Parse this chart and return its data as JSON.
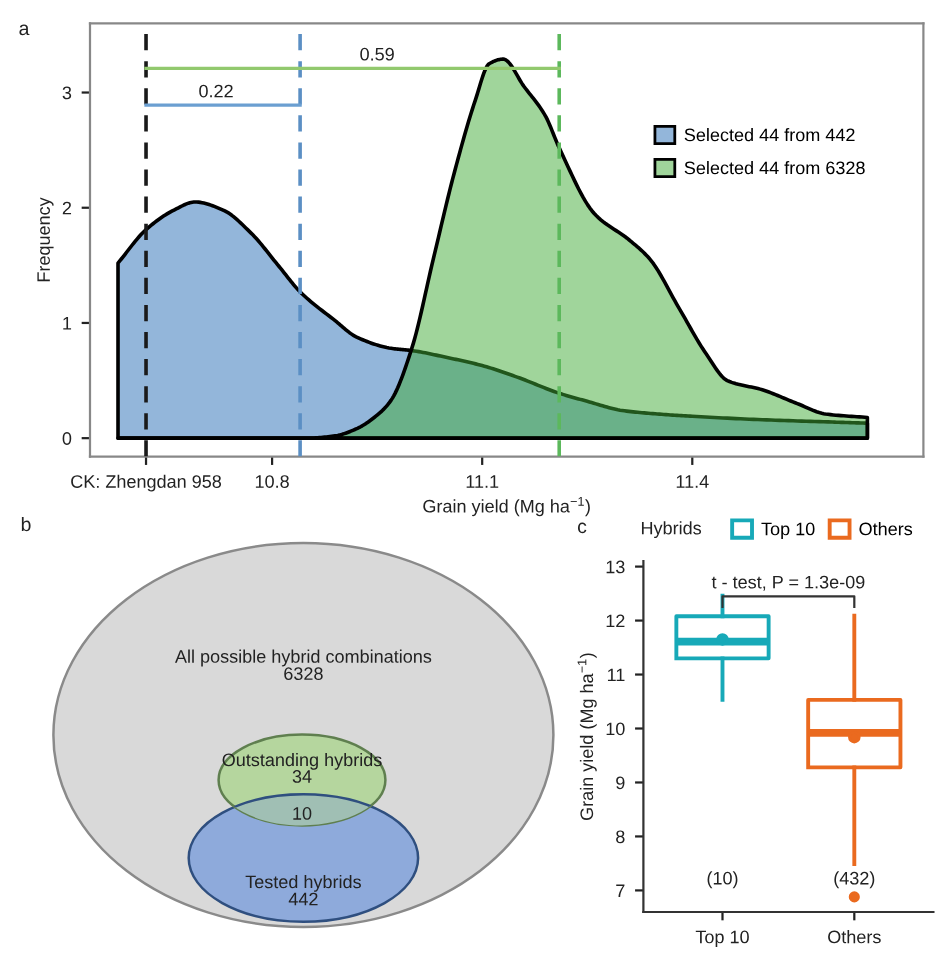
{
  "chart_data": [
    {
      "type": "area",
      "xlabel": "Grain yield (Mg ha$^{−1}$)",
      "ylabel": "Frequency",
      "annotations": [
        "a",
        {
          "text": "0.22",
          "x": 10.72,
          "y": 2.89
        },
        {
          "text": "0.59",
          "x": 10.95,
          "y": 3.21
        }
      ],
      "series": [
        {
          "name": "Selected 44 from 442",
          "color": "#93b6da",
          "x": [
            10.58,
            10.62,
            10.66,
            10.69,
            10.73,
            10.77,
            10.81,
            10.84,
            10.89,
            10.92,
            10.97,
            11.0,
            11.05,
            11.1,
            11.15,
            11.21,
            11.25,
            11.3,
            11.35,
            11.4,
            11.5,
            11.6,
            11.65
          ],
          "values": [
            1.52,
            1.81,
            1.98,
            2.05,
            1.98,
            1.78,
            1.49,
            1.27,
            1.02,
            0.88,
            0.78,
            0.76,
            0.7,
            0.63,
            0.53,
            0.39,
            0.32,
            0.24,
            0.21,
            0.19,
            0.16,
            0.14,
            0.13
          ]
        },
        {
          "name": "Selected 44 from 6328",
          "color": "#a0d59b",
          "x": [
            10.58,
            10.8,
            10.85,
            10.89,
            10.92,
            10.95,
            10.97,
            11.0,
            11.03,
            11.06,
            11.09,
            11.11,
            11.13,
            11.16,
            11.19,
            11.21,
            11.26,
            11.31,
            11.34,
            11.38,
            11.42,
            11.45,
            11.5,
            11.55,
            11.59,
            11.65
          ],
          "values": [
            0,
            0,
            0,
            0.02,
            0.08,
            0.2,
            0.33,
            0.79,
            1.55,
            2.3,
            2.93,
            3.25,
            3.29,
            3.05,
            2.8,
            2.52,
            1.95,
            1.72,
            1.55,
            1.14,
            0.73,
            0.5,
            0.42,
            0.3,
            0.21,
            0.18
          ]
        },
        {
          "type": "line",
          "color": "#6b9fd1",
          "x": [
            10.62,
            10.84
          ],
          "values": [
            2.89,
            2.89
          ]
        },
        {
          "type": "line",
          "color": "#92c96e",
          "x": [
            10.62,
            11.21
          ],
          "values": [
            3.21,
            3.21
          ]
        }
      ],
      "xlim": [
        10.54,
        11.73
      ],
      "ylim": [
        -0.16,
        3.6
      ],
      "xticks": [
        {
          "value": 10.62,
          "label": "CK: Zhengdan 958"
        },
        10.8,
        11.1,
        11.4
      ],
      "yticks": [
        0,
        1,
        2,
        3
      ],
      "ref_lines": [
        {
          "axis": "x",
          "value": 10.62,
          "color": "#1a1a1a",
          "line_style": "dashed"
        },
        {
          "axis": "x",
          "value": 10.84,
          "color": "#5b8fc4",
          "line_style": "dashed"
        },
        {
          "axis": "x",
          "value": 11.21,
          "color": "#5cb85c",
          "line_style": "dashed"
        }
      ],
      "legend": "top right"
    },
    {
      "type": "other",
      "categories": [
        "All possible hybrid combinations",
        "Outstanding hybrids",
        null,
        "Tested hybrids"
      ],
      "values": [
        6328,
        34,
        10,
        442
      ],
      "colors": [
        "#d9d9d9",
        "#b5d69e",
        "#a0bfb4",
        "#8eaadb"
      ],
      "data_labels": true,
      "annotations": [
        "b"
      ]
    },
    {
      "type": "box",
      "categories": [
        "Top 10",
        "Others"
      ],
      "ylabel": "Grain yield (Mg ha$^{−1}$)",
      "legend_title": "Hybrids",
      "legend": "top",
      "series": [
        {
          "name": "Top 10",
          "color": "#17a9b8",
          "boxes": [
            {
              "low": 10.53,
              "q1": 11.3,
              "median": 11.61,
              "q3": 12.08,
              "high": 12.46,
              "mean": 11.65
            },
            null
          ]
        },
        {
          "name": "Others",
          "color": "#ea6a1f",
          "boxes": [
            null,
            {
              "low": 7.49,
              "q1": 9.28,
              "median": 9.92,
              "q3": 10.53,
              "high": 12.09,
              "mean": 9.84,
              "outliers": [
                6.88
              ]
            }
          ]
        }
      ],
      "ylim": [
        6.6,
        13.1
      ],
      "yticks": [
        7,
        8,
        9,
        10,
        11,
        12,
        13
      ],
      "annotations": [
        "c",
        "t - test, P = 1.3e-09",
        "(10)",
        "(432)"
      ]
    }
  ]
}
